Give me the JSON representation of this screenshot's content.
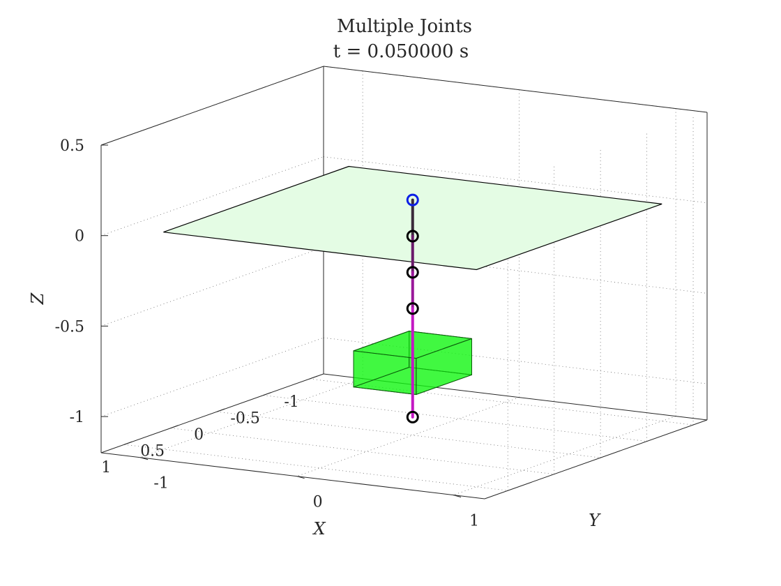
{
  "chart_data": {
    "type": "3d-line",
    "title_line1": "Multiple Joints",
    "title_line2": "t = 0.050000 s",
    "xlabel": "X",
    "ylabel": "Y",
    "zlabel": "Z",
    "xlim": [
      -1.15,
      1.25
    ],
    "ylim": [
      -1.25,
      1.2
    ],
    "zlim": [
      -1.2,
      0.5
    ],
    "xticks": [
      -1,
      -0.5,
      0,
      0.5,
      1
    ],
    "yticks": [
      -1,
      0,
      1
    ],
    "zticks": [
      -1,
      -0.5,
      0,
      0.5
    ],
    "xtick_labels": [
      "-1",
      "-0.5",
      "0",
      "0.5",
      "1"
    ],
    "ytick_labels": [
      "-1",
      "0",
      "1"
    ],
    "ztick_labels": [
      "-1",
      "-0.5",
      "0",
      "0.5"
    ],
    "grid": true,
    "plane": {
      "z": 0,
      "x": [
        -1,
        1
      ],
      "y": [
        -1,
        1
      ],
      "color": "#e4fce4"
    },
    "block": {
      "x": [
        -0.3,
        0.3
      ],
      "y": [
        -0.2,
        0.2
      ],
      "z": [
        -0.9,
        -0.7
      ],
      "color": "#11f511"
    },
    "joints": [
      {
        "x": 0,
        "y": 0,
        "z": 0.1,
        "color": "#0b1fe6"
      },
      {
        "x": 0,
        "y": 0,
        "z": -0.1,
        "color": "#000000"
      },
      {
        "x": 0,
        "y": 0,
        "z": -0.3,
        "color": "#000000"
      },
      {
        "x": 0,
        "y": 0,
        "z": -0.5,
        "color": "#000000"
      },
      {
        "x": 0,
        "y": 0,
        "z": -1.1,
        "color": "#000000"
      }
    ],
    "links": [
      {
        "from": 0,
        "to": 1,
        "color": "#3a2a3a"
      },
      {
        "from": 1,
        "to": 2,
        "color": "#6a1a6a"
      },
      {
        "from": 2,
        "to": 3,
        "color": "#9a189a"
      },
      {
        "from": 3,
        "to": 4,
        "color": "#c418c4"
      }
    ]
  }
}
